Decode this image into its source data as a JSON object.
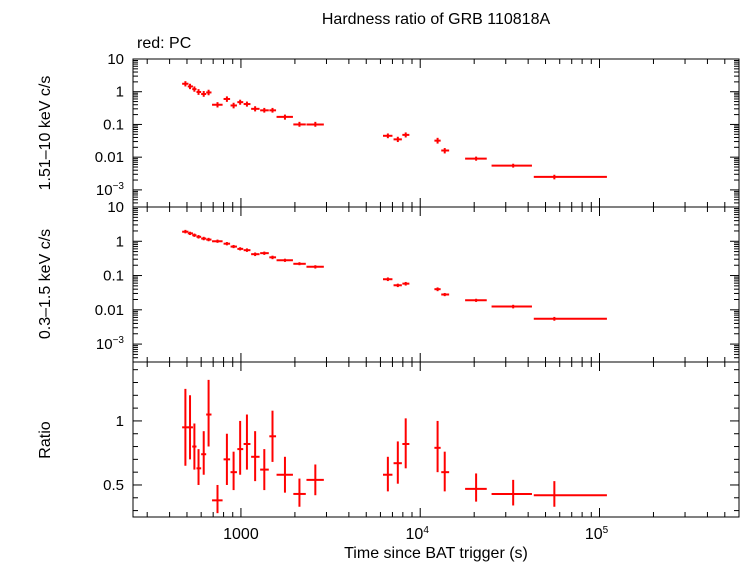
{
  "chart_data": {
    "type": "scatter",
    "title": "Hardness ratio of GRB 110818A",
    "subtitle": "red: PC",
    "xlabel": "Time since BAT trigger (s)",
    "x_scale": "log",
    "xlim": [
      250,
      600000
    ],
    "x_ticks": [
      {
        "value": 1000,
        "label": "1000",
        "sup": ""
      },
      {
        "value": 10000,
        "label": "10",
        "sup": "4"
      },
      {
        "value": 100000,
        "label": "10",
        "sup": "5"
      }
    ],
    "series_color": "#ff0000",
    "panels": [
      {
        "name": "hard-band",
        "ylabel": "1.51–10 keV c/s",
        "y_scale": "log",
        "ylim": [
          0.0003,
          10
        ],
        "y_ticks": [
          {
            "value": 10,
            "label": "10",
            "sup": ""
          },
          {
            "value": 1,
            "label": "1",
            "sup": ""
          },
          {
            "value": 0.1,
            "label": "0.1",
            "sup": ""
          },
          {
            "value": 0.01,
            "label": "0.01",
            "sup": ""
          },
          {
            "value": 0.001,
            "label": "10",
            "sup": "−3"
          }
        ],
        "points": [
          {
            "x": 490,
            "xlo": 470,
            "xhi": 510,
            "y": 1.75,
            "ylo": 1.45,
            "yhi": 2.1
          },
          {
            "x": 520,
            "xlo": 505,
            "xhi": 540,
            "y": 1.45,
            "ylo": 1.2,
            "yhi": 1.75
          },
          {
            "x": 550,
            "xlo": 535,
            "xhi": 565,
            "y": 1.2,
            "ylo": 1.0,
            "yhi": 1.45
          },
          {
            "x": 580,
            "xlo": 565,
            "xhi": 600,
            "y": 0.98,
            "ylo": 0.8,
            "yhi": 1.2
          },
          {
            "x": 620,
            "xlo": 600,
            "xhi": 640,
            "y": 0.85,
            "ylo": 0.7,
            "yhi": 1.05
          },
          {
            "x": 660,
            "xlo": 640,
            "xhi": 685,
            "y": 0.95,
            "ylo": 0.78,
            "yhi": 1.15
          },
          {
            "x": 740,
            "xlo": 690,
            "xhi": 790,
            "y": 0.4,
            "ylo": 0.33,
            "yhi": 0.48
          },
          {
            "x": 835,
            "xlo": 800,
            "xhi": 870,
            "y": 0.6,
            "ylo": 0.49,
            "yhi": 0.72
          },
          {
            "x": 910,
            "xlo": 875,
            "xhi": 950,
            "y": 0.38,
            "ylo": 0.31,
            "yhi": 0.46
          },
          {
            "x": 990,
            "xlo": 955,
            "xhi": 1030,
            "y": 0.48,
            "ylo": 0.4,
            "yhi": 0.57
          },
          {
            "x": 1080,
            "xlo": 1035,
            "xhi": 1130,
            "y": 0.42,
            "ylo": 0.35,
            "yhi": 0.5
          },
          {
            "x": 1200,
            "xlo": 1140,
            "xhi": 1270,
            "y": 0.3,
            "ylo": 0.25,
            "yhi": 0.36
          },
          {
            "x": 1350,
            "xlo": 1280,
            "xhi": 1430,
            "y": 0.27,
            "ylo": 0.23,
            "yhi": 0.32
          },
          {
            "x": 1500,
            "xlo": 1440,
            "xhi": 1570,
            "y": 0.27,
            "ylo": 0.23,
            "yhi": 0.32
          },
          {
            "x": 1760,
            "xlo": 1580,
            "xhi": 1950,
            "y": 0.17,
            "ylo": 0.14,
            "yhi": 0.2
          },
          {
            "x": 2120,
            "xlo": 1960,
            "xhi": 2300,
            "y": 0.1,
            "ylo": 0.085,
            "yhi": 0.12
          },
          {
            "x": 2600,
            "xlo": 2320,
            "xhi": 2900,
            "y": 0.1,
            "ylo": 0.085,
            "yhi": 0.12
          },
          {
            "x": 6600,
            "xlo": 6200,
            "xhi": 7000,
            "y": 0.045,
            "ylo": 0.038,
            "yhi": 0.053
          },
          {
            "x": 7500,
            "xlo": 7100,
            "xhi": 7900,
            "y": 0.035,
            "ylo": 0.029,
            "yhi": 0.042
          },
          {
            "x": 8300,
            "xlo": 7950,
            "xhi": 8700,
            "y": 0.048,
            "ylo": 0.04,
            "yhi": 0.057
          },
          {
            "x": 12500,
            "xlo": 12000,
            "xhi": 13000,
            "y": 0.032,
            "ylo": 0.026,
            "yhi": 0.039
          },
          {
            "x": 13700,
            "xlo": 13100,
            "xhi": 14500,
            "y": 0.016,
            "ylo": 0.013,
            "yhi": 0.019
          },
          {
            "x": 20500,
            "xlo": 17800,
            "xhi": 23500,
            "y": 0.009,
            "ylo": 0.0078,
            "yhi": 0.0104
          },
          {
            "x": 33000,
            "xlo": 25000,
            "xhi": 42000,
            "y": 0.0055,
            "ylo": 0.0048,
            "yhi": 0.0063
          },
          {
            "x": 56000,
            "xlo": 43000,
            "xhi": 110000,
            "y": 0.0025,
            "ylo": 0.0021,
            "yhi": 0.0029
          }
        ]
      },
      {
        "name": "soft-band",
        "ylabel": "0.3–1.5 keV c/s",
        "y_scale": "log",
        "ylim": [
          0.0003,
          10
        ],
        "y_ticks": [
          {
            "value": 10,
            "label": "10",
            "sup": ""
          },
          {
            "value": 1,
            "label": "1",
            "sup": ""
          },
          {
            "value": 0.1,
            "label": "0.1",
            "sup": ""
          },
          {
            "value": 0.01,
            "label": "0.01",
            "sup": ""
          },
          {
            "value": 0.001,
            "label": "10",
            "sup": "−3"
          }
        ],
        "points": [
          {
            "x": 490,
            "xlo": 470,
            "xhi": 510,
            "y": 1.9,
            "ylo": 1.7,
            "yhi": 2.15
          },
          {
            "x": 520,
            "xlo": 505,
            "xhi": 540,
            "y": 1.7,
            "ylo": 1.52,
            "yhi": 1.9
          },
          {
            "x": 550,
            "xlo": 535,
            "xhi": 565,
            "y": 1.5,
            "ylo": 1.34,
            "yhi": 1.68
          },
          {
            "x": 580,
            "xlo": 565,
            "xhi": 600,
            "y": 1.35,
            "ylo": 1.2,
            "yhi": 1.52
          },
          {
            "x": 620,
            "xlo": 600,
            "xhi": 640,
            "y": 1.2,
            "ylo": 1.07,
            "yhi": 1.35
          },
          {
            "x": 660,
            "xlo": 640,
            "xhi": 685,
            "y": 1.12,
            "ylo": 1.0,
            "yhi": 1.26
          },
          {
            "x": 740,
            "xlo": 690,
            "xhi": 790,
            "y": 1.0,
            "ylo": 0.9,
            "yhi": 1.12
          },
          {
            "x": 835,
            "xlo": 800,
            "xhi": 870,
            "y": 0.85,
            "ylo": 0.76,
            "yhi": 0.95
          },
          {
            "x": 910,
            "xlo": 875,
            "xhi": 950,
            "y": 0.7,
            "ylo": 0.63,
            "yhi": 0.78
          },
          {
            "x": 990,
            "xlo": 955,
            "xhi": 1030,
            "y": 0.6,
            "ylo": 0.54,
            "yhi": 0.67
          },
          {
            "x": 1080,
            "xlo": 1035,
            "xhi": 1130,
            "y": 0.55,
            "ylo": 0.49,
            "yhi": 0.62
          },
          {
            "x": 1200,
            "xlo": 1140,
            "xhi": 1270,
            "y": 0.42,
            "ylo": 0.37,
            "yhi": 0.47
          },
          {
            "x": 1350,
            "xlo": 1280,
            "xhi": 1430,
            "y": 0.45,
            "ylo": 0.4,
            "yhi": 0.5
          },
          {
            "x": 1500,
            "xlo": 1440,
            "xhi": 1570,
            "y": 0.34,
            "ylo": 0.3,
            "yhi": 0.38
          },
          {
            "x": 1760,
            "xlo": 1580,
            "xhi": 1950,
            "y": 0.28,
            "ylo": 0.25,
            "yhi": 0.31
          },
          {
            "x": 2120,
            "xlo": 1960,
            "xhi": 2300,
            "y": 0.22,
            "ylo": 0.2,
            "yhi": 0.245
          },
          {
            "x": 2600,
            "xlo": 2320,
            "xhi": 2900,
            "y": 0.18,
            "ylo": 0.16,
            "yhi": 0.2
          },
          {
            "x": 6600,
            "xlo": 6200,
            "xhi": 7000,
            "y": 0.078,
            "ylo": 0.069,
            "yhi": 0.088
          },
          {
            "x": 7500,
            "xlo": 7100,
            "xhi": 7900,
            "y": 0.052,
            "ylo": 0.046,
            "yhi": 0.058
          },
          {
            "x": 8300,
            "xlo": 7950,
            "xhi": 8700,
            "y": 0.058,
            "ylo": 0.051,
            "yhi": 0.065
          },
          {
            "x": 12500,
            "xlo": 12000,
            "xhi": 13000,
            "y": 0.04,
            "ylo": 0.035,
            "yhi": 0.045
          },
          {
            "x": 13700,
            "xlo": 13100,
            "xhi": 14500,
            "y": 0.028,
            "ylo": 0.025,
            "yhi": 0.031
          },
          {
            "x": 20500,
            "xlo": 17800,
            "xhi": 23500,
            "y": 0.019,
            "ylo": 0.017,
            "yhi": 0.021
          },
          {
            "x": 33000,
            "xlo": 25000,
            "xhi": 42000,
            "y": 0.0125,
            "ylo": 0.011,
            "yhi": 0.014
          },
          {
            "x": 56000,
            "xlo": 43000,
            "xhi": 110000,
            "y": 0.0055,
            "ylo": 0.0048,
            "yhi": 0.0062
          }
        ]
      },
      {
        "name": "ratio",
        "ylabel": "Ratio",
        "y_scale": "linear",
        "ylim": [
          0.25,
          1.46
        ],
        "y_ticks": [
          {
            "value": 1,
            "label": "1",
            "sup": ""
          },
          {
            "value": 0.5,
            "label": "0.5",
            "sup": ""
          }
        ],
        "points": [
          {
            "x": 490,
            "xlo": 470,
            "xhi": 510,
            "y": 0.95,
            "ylo": 0.65,
            "yhi": 1.25
          },
          {
            "x": 520,
            "xlo": 505,
            "xhi": 540,
            "y": 0.95,
            "ylo": 0.7,
            "yhi": 1.2
          },
          {
            "x": 550,
            "xlo": 535,
            "xhi": 565,
            "y": 0.8,
            "ylo": 0.62,
            "yhi": 0.98
          },
          {
            "x": 580,
            "xlo": 565,
            "xhi": 600,
            "y": 0.63,
            "ylo": 0.5,
            "yhi": 0.78
          },
          {
            "x": 620,
            "xlo": 600,
            "xhi": 640,
            "y": 0.74,
            "ylo": 0.58,
            "yhi": 0.92
          },
          {
            "x": 660,
            "xlo": 640,
            "xhi": 685,
            "y": 1.05,
            "ylo": 0.8,
            "yhi": 1.32
          },
          {
            "x": 740,
            "xlo": 690,
            "xhi": 790,
            "y": 0.38,
            "ylo": 0.28,
            "yhi": 0.5
          },
          {
            "x": 835,
            "xlo": 800,
            "xhi": 870,
            "y": 0.7,
            "ylo": 0.5,
            "yhi": 0.9
          },
          {
            "x": 910,
            "xlo": 875,
            "xhi": 950,
            "y": 0.6,
            "ylo": 0.46,
            "yhi": 0.76
          },
          {
            "x": 990,
            "xlo": 955,
            "xhi": 1030,
            "y": 0.78,
            "ylo": 0.58,
            "yhi": 1.0
          },
          {
            "x": 1080,
            "xlo": 1035,
            "xhi": 1130,
            "y": 0.82,
            "ylo": 0.62,
            "yhi": 1.05
          },
          {
            "x": 1200,
            "xlo": 1140,
            "xhi": 1270,
            "y": 0.72,
            "ylo": 0.53,
            "yhi": 0.92
          },
          {
            "x": 1350,
            "xlo": 1280,
            "xhi": 1430,
            "y": 0.62,
            "ylo": 0.46,
            "yhi": 0.78
          },
          {
            "x": 1500,
            "xlo": 1440,
            "xhi": 1570,
            "y": 0.88,
            "ylo": 0.68,
            "yhi": 1.08
          },
          {
            "x": 1760,
            "xlo": 1580,
            "xhi": 1950,
            "y": 0.58,
            "ylo": 0.44,
            "yhi": 0.72
          },
          {
            "x": 2120,
            "xlo": 1960,
            "xhi": 2300,
            "y": 0.43,
            "ylo": 0.33,
            "yhi": 0.55
          },
          {
            "x": 2600,
            "xlo": 2320,
            "xhi": 2900,
            "y": 0.54,
            "ylo": 0.42,
            "yhi": 0.66
          },
          {
            "x": 6600,
            "xlo": 6200,
            "xhi": 7000,
            "y": 0.58,
            "ylo": 0.45,
            "yhi": 0.72
          },
          {
            "x": 7500,
            "xlo": 7100,
            "xhi": 7900,
            "y": 0.67,
            "ylo": 0.51,
            "yhi": 0.84
          },
          {
            "x": 8300,
            "xlo": 7950,
            "xhi": 8700,
            "y": 0.82,
            "ylo": 0.63,
            "yhi": 1.02
          },
          {
            "x": 12500,
            "xlo": 12000,
            "xhi": 13000,
            "y": 0.79,
            "ylo": 0.6,
            "yhi": 1.0
          },
          {
            "x": 13700,
            "xlo": 13100,
            "xhi": 14500,
            "y": 0.6,
            "ylo": 0.45,
            "yhi": 0.76
          },
          {
            "x": 20500,
            "xlo": 17800,
            "xhi": 23500,
            "y": 0.47,
            "ylo": 0.37,
            "yhi": 0.59
          },
          {
            "x": 33000,
            "xlo": 25000,
            "xhi": 42000,
            "y": 0.43,
            "ylo": 0.34,
            "yhi": 0.54
          },
          {
            "x": 56000,
            "xlo": 43000,
            "xhi": 110000,
            "y": 0.42,
            "ylo": 0.33,
            "yhi": 0.53
          }
        ]
      }
    ]
  }
}
